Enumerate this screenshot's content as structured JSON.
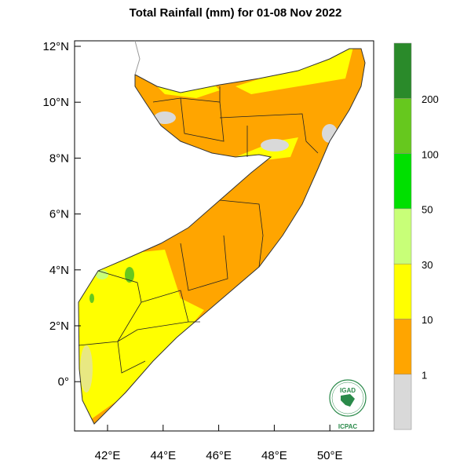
{
  "title": "Total Rainfall (mm) for 01-08 Nov 2022",
  "y_ticks": [
    "12°N",
    "10°N",
    "8°N",
    "6°N",
    "4°N",
    "2°N",
    "0°"
  ],
  "x_ticks": [
    "42°E",
    "44°E",
    "46°E",
    "48°E",
    "50°E"
  ],
  "legend": {
    "labels": [
      "200",
      "100",
      "50",
      "30",
      "10",
      "1"
    ],
    "colors": [
      "#2a8a2a",
      "#66c81e",
      "#00e000",
      "#c8ff78",
      "#ffff00",
      "#ffa500",
      "#d9d9d9"
    ]
  },
  "logo": {
    "top_text": "IGAD",
    "bottom_text": "ICPAC"
  }
}
